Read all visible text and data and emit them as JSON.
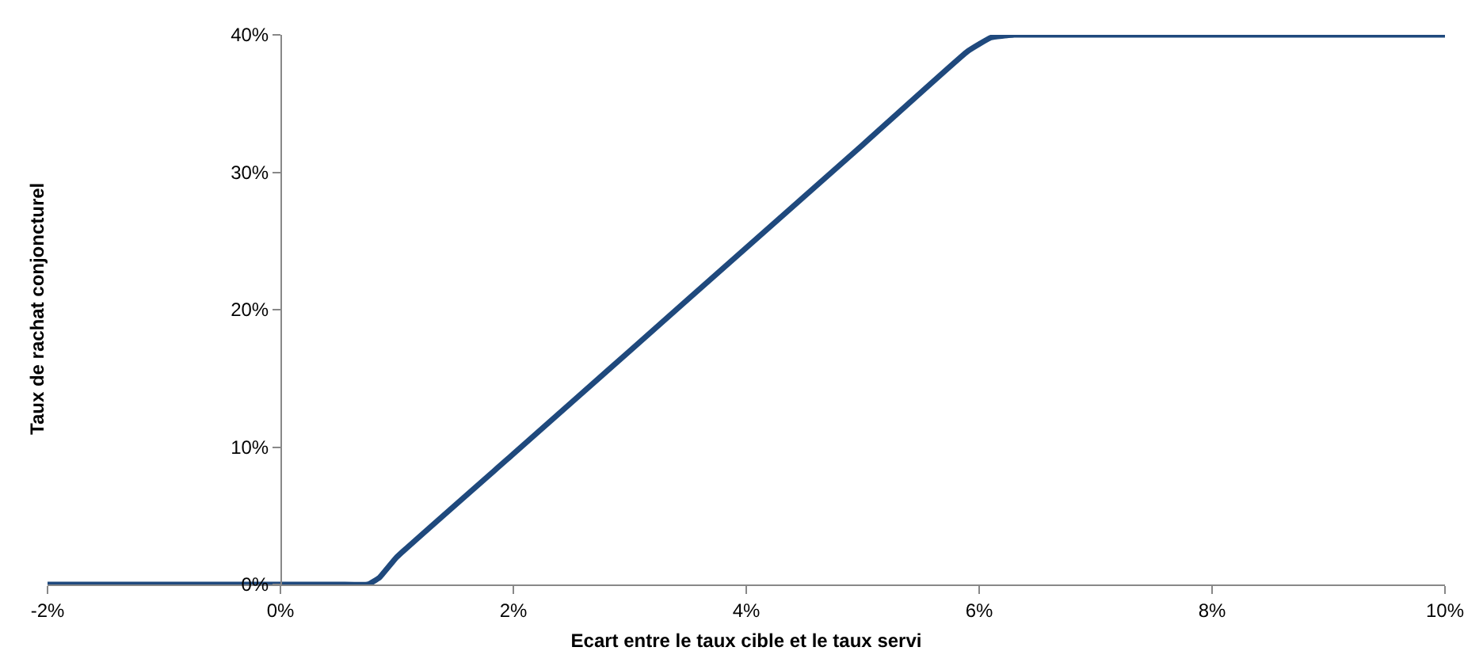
{
  "chart_data": {
    "type": "line",
    "xlabel": "Ecart entre le taux cible et le taux servi",
    "ylabel": "Taux de rachat conjoncturel",
    "x": [
      -2,
      0.5,
      0.75,
      0.85,
      1,
      2,
      3,
      4,
      5,
      5.9,
      6.1,
      6.3,
      10
    ],
    "series": [
      {
        "color": "#1f497d",
        "values": [
          0,
          0,
          0,
          0.5,
          2,
          9.5,
          17,
          24.5,
          32,
          38.8,
          39.8,
          40,
          40
        ]
      }
    ],
    "xlim": [
      -2,
      10
    ],
    "xticks": [
      {
        "value": -2,
        "label": "-2%"
      },
      {
        "value": 0,
        "label": "0%"
      },
      {
        "value": 2,
        "label": "2%"
      },
      {
        "value": 4,
        "label": "4%"
      },
      {
        "value": 6,
        "label": "6%"
      },
      {
        "value": 8,
        "label": "8%"
      },
      {
        "value": 10,
        "label": "10%"
      }
    ],
    "ylim": [
      0,
      40
    ],
    "yticks": [
      {
        "value": 0,
        "label": "0%"
      },
      {
        "value": 10,
        "label": "10%"
      },
      {
        "value": 20,
        "label": "20%"
      },
      {
        "value": 30,
        "label": "30%"
      },
      {
        "value": 40,
        "label": "40%"
      }
    ],
    "marker": "none",
    "line_style": "solid"
  }
}
